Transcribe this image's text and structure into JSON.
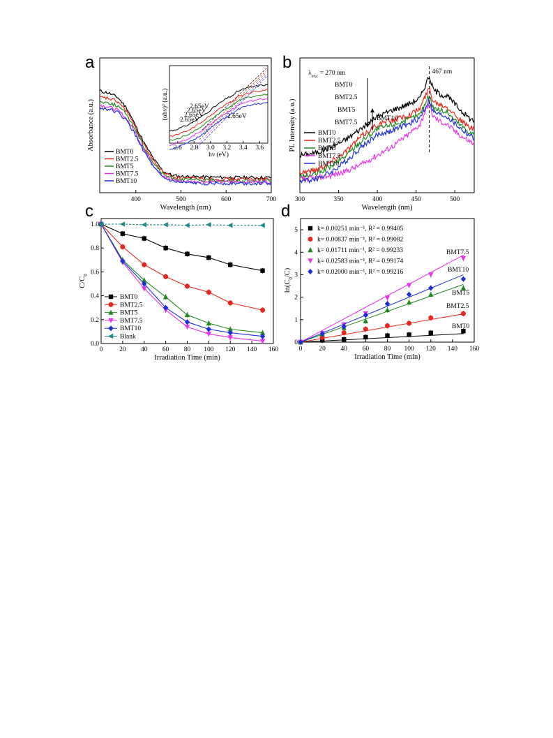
{
  "panel_letters": [
    "a",
    "b",
    "c",
    "d"
  ],
  "colors": {
    "BMT0": "#000000",
    "BMT2.5": "#e8261c",
    "BMT5": "#1e8a1e",
    "BMT7.5": "#e833e8",
    "BMT10": "#1c2ed8",
    "Blank": "#1a8a8a"
  },
  "chart_data": [
    {
      "id": "a",
      "type": "line",
      "xlabel": "Wavelength (nm)",
      "ylabel": "Absorbance (a.u.)",
      "xlim": [
        320,
        700
      ],
      "xticks": [
        400,
        500,
        600,
        700
      ],
      "legend_position": "bottom-left",
      "series": [
        {
          "name": "BMT0",
          "color": "#000000",
          "x": [
            320,
            340,
            360,
            380,
            400,
            420,
            440,
            460,
            480,
            500,
            550,
            600,
            650,
            700
          ],
          "y": [
            0.9,
            0.88,
            0.84,
            0.74,
            0.57,
            0.4,
            0.26,
            0.15,
            0.11,
            0.1,
            0.095,
            0.09,
            0.09,
            0.09
          ]
        },
        {
          "name": "BMT2.5",
          "color": "#e8261c",
          "x": [
            320,
            340,
            360,
            380,
            400,
            420,
            440,
            460,
            480,
            500,
            550,
            600,
            650,
            700
          ],
          "y": [
            0.84,
            0.83,
            0.8,
            0.71,
            0.55,
            0.38,
            0.24,
            0.14,
            0.1,
            0.085,
            0.08,
            0.075,
            0.075,
            0.075
          ]
        },
        {
          "name": "BMT5",
          "color": "#1e8a1e",
          "x": [
            320,
            340,
            360,
            380,
            400,
            420,
            440,
            460,
            480,
            500,
            550,
            600,
            650,
            700
          ],
          "y": [
            0.8,
            0.79,
            0.76,
            0.68,
            0.53,
            0.36,
            0.22,
            0.12,
            0.085,
            0.07,
            0.065,
            0.06,
            0.06,
            0.06
          ]
        },
        {
          "name": "BMT7.5",
          "color": "#e833e8",
          "x": [
            320,
            340,
            360,
            380,
            400,
            420,
            440,
            460,
            480,
            500,
            550,
            600,
            650,
            700
          ],
          "y": [
            0.77,
            0.75,
            0.72,
            0.64,
            0.5,
            0.34,
            0.2,
            0.1,
            0.07,
            0.055,
            0.05,
            0.05,
            0.05,
            0.05
          ]
        },
        {
          "name": "BMT10",
          "color": "#1c2ed8",
          "x": [
            320,
            340,
            360,
            380,
            400,
            420,
            440,
            460,
            480,
            500,
            550,
            600,
            650,
            700
          ],
          "y": [
            0.74,
            0.73,
            0.7,
            0.62,
            0.48,
            0.32,
            0.18,
            0.09,
            0.055,
            0.04,
            0.035,
            0.035,
            0.035,
            0.035
          ]
        }
      ],
      "inset": {
        "xlabel": "hν (eV)",
        "ylabel": "(αhν)² (a.u.)",
        "xlim": [
          2.5,
          3.7
        ],
        "xticks": [
          "2.6",
          "2.8",
          "3.0",
          "3.2",
          "3.4",
          "3.6"
        ],
        "annotations": [
          "2.65eV",
          "2.65eV",
          "2.65eV",
          "2.65eV",
          "2.65eV"
        ]
      }
    },
    {
      "id": "b",
      "type": "line",
      "xlabel": "Wavelength (nm)",
      "ylabel": "PL Intensity (a.u.)",
      "xlim": [
        300,
        525
      ],
      "xticks": [
        300,
        350,
        400,
        450,
        500
      ],
      "annotation_peak": "467 nm",
      "excitation_label": "λ",
      "excitation_sub": "exc",
      "excitation_value": "= 270 nm",
      "order_labels": [
        "BMT0",
        "BMT2.5",
        "BMT5",
        "BMT7.5",
        "BMT10"
      ],
      "legend_position": "bottom-left",
      "series": [
        {
          "name": "BMT0",
          "color": "#000000",
          "x": [
            300,
            320,
            340,
            360,
            380,
            400,
            420,
            440,
            455,
            462,
            467,
            472,
            480,
            490,
            500,
            510,
            520,
            525
          ],
          "y": [
            0.28,
            0.3,
            0.35,
            0.42,
            0.52,
            0.62,
            0.68,
            0.73,
            0.78,
            0.9,
            0.98,
            0.86,
            0.82,
            0.8,
            0.73,
            0.66,
            0.6,
            0.58
          ]
        },
        {
          "name": "BMT2.5",
          "color": "#e8261c",
          "x": [
            300,
            320,
            340,
            360,
            380,
            400,
            420,
            440,
            455,
            462,
            467,
            472,
            480,
            490,
            500,
            510,
            520,
            525
          ],
          "y": [
            0.13,
            0.15,
            0.22,
            0.32,
            0.45,
            0.55,
            0.59,
            0.63,
            0.69,
            0.8,
            0.87,
            0.76,
            0.73,
            0.71,
            0.64,
            0.57,
            0.52,
            0.5
          ]
        },
        {
          "name": "BMT5",
          "color": "#1e8a1e",
          "x": [
            300,
            320,
            340,
            360,
            380,
            400,
            420,
            440,
            455,
            462,
            467,
            472,
            480,
            490,
            500,
            510,
            520,
            525
          ],
          "y": [
            0.09,
            0.11,
            0.18,
            0.28,
            0.41,
            0.51,
            0.55,
            0.59,
            0.64,
            0.74,
            0.81,
            0.7,
            0.68,
            0.66,
            0.59,
            0.53,
            0.48,
            0.46
          ]
        },
        {
          "name": "BMT7.5",
          "color": "#e833e8",
          "x": [
            300,
            320,
            340,
            360,
            380,
            400,
            420,
            440,
            455,
            462,
            467,
            472,
            480,
            490,
            500,
            510,
            520,
            525
          ],
          "y": [
            0.07,
            0.08,
            0.1,
            0.14,
            0.2,
            0.28,
            0.36,
            0.46,
            0.55,
            0.67,
            0.74,
            0.62,
            0.58,
            0.55,
            0.49,
            0.44,
            0.4,
            0.38
          ]
        },
        {
          "name": "BMT10",
          "color": "#1c2ed8",
          "x": [
            300,
            320,
            340,
            360,
            380,
            400,
            420,
            440,
            455,
            462,
            467,
            472,
            480,
            490,
            500,
            510,
            520,
            525
          ],
          "y": [
            0.05,
            0.07,
            0.13,
            0.23,
            0.36,
            0.46,
            0.5,
            0.55,
            0.61,
            0.7,
            0.77,
            0.66,
            0.64,
            0.62,
            0.56,
            0.5,
            0.45,
            0.43
          ]
        }
      ]
    },
    {
      "id": "c",
      "type": "line",
      "xlabel": "Irradiation Time (min)",
      "ylabel": "C/C",
      "ylabel_sub": "0",
      "xlim": [
        0,
        160
      ],
      "ylim": [
        0,
        1.0
      ],
      "xticks": [
        0,
        20,
        40,
        60,
        80,
        100,
        120,
        140,
        160
      ],
      "yticks": [
        "0.0",
        "0.2",
        "0.4",
        "0.6",
        "0.8",
        "1.0"
      ],
      "legend_position": "bottom-left",
      "x": [
        0,
        20,
        40,
        60,
        80,
        100,
        120,
        150
      ],
      "series": [
        {
          "name": "BMT0",
          "color": "#000000",
          "marker": "square",
          "values": [
            1.0,
            0.92,
            0.88,
            0.8,
            0.75,
            0.72,
            0.66,
            0.61
          ]
        },
        {
          "name": "BMT2.5",
          "color": "#e8261c",
          "marker": "circle",
          "values": [
            1.0,
            0.81,
            0.66,
            0.56,
            0.48,
            0.43,
            0.34,
            0.28
          ]
        },
        {
          "name": "BMT5",
          "color": "#1e8a1e",
          "marker": "triangle-up",
          "values": [
            1.0,
            0.7,
            0.53,
            0.39,
            0.24,
            0.17,
            0.12,
            0.09
          ]
        },
        {
          "name": "BMT7.5",
          "color": "#e833e8",
          "marker": "triangle-down",
          "values": [
            1.0,
            0.68,
            0.46,
            0.28,
            0.14,
            0.08,
            0.05,
            0.02
          ]
        },
        {
          "name": "BMT10",
          "color": "#1c2ed8",
          "marker": "diamond",
          "values": [
            1.0,
            0.69,
            0.5,
            0.3,
            0.18,
            0.12,
            0.09,
            0.06
          ]
        },
        {
          "name": "Blank",
          "color": "#1a8a8a",
          "marker": "triangle-left",
          "values": [
            1.0,
            1.0,
            0.995,
            0.995,
            0.99,
            0.995,
            0.99,
            0.99
          ]
        }
      ]
    },
    {
      "id": "d",
      "type": "scatter",
      "xlabel": "Irradiation Time (min)",
      "ylabel": "ln(C",
      "ylabel_sub": "0",
      "ylabel_end": "/C)",
      "xlim": [
        0,
        160
      ],
      "ylim": [
        0,
        5.5
      ],
      "xticks": [
        0,
        20,
        40,
        60,
        80,
        100,
        120,
        140,
        160
      ],
      "yticks": [
        0,
        1,
        2,
        3,
        4,
        5
      ],
      "legend_position": "top-left",
      "x": [
        0,
        20,
        40,
        60,
        80,
        100,
        120,
        150
      ],
      "series": [
        {
          "name": "BMT0",
          "color": "#000000",
          "marker": "square",
          "k": 0.00251,
          "legend": "k= 0.00251 min⁻¹, R² = 0.99405",
          "values": [
            0,
            0.08,
            0.12,
            0.22,
            0.29,
            0.33,
            0.41,
            0.49
          ]
        },
        {
          "name": "BMT2.5",
          "color": "#e8261c",
          "marker": "circle",
          "k": 0.00837,
          "legend": "k= 0.00837 min⁻¹, R² = 0.99082",
          "values": [
            0,
            0.21,
            0.42,
            0.58,
            0.73,
            0.84,
            1.08,
            1.27
          ]
        },
        {
          "name": "BMT5",
          "color": "#1e8a1e",
          "marker": "triangle-up",
          "k": 0.01711,
          "legend": "k= 0.01711 min⁻¹, R² = 0.99233",
          "values": [
            0,
            0.36,
            0.64,
            0.94,
            1.43,
            1.77,
            2.12,
            2.41
          ]
        },
        {
          "name": "BMT7.5",
          "color": "#e833e8",
          "marker": "triangle-down",
          "k": 0.02583,
          "legend": "k= 0.02583 min⁻¹, R² = 0.99174",
          "values": [
            0,
            0.39,
            0.78,
            1.27,
            1.97,
            2.53,
            3.0,
            3.73
          ]
        },
        {
          "name": "BMT10",
          "color": "#1c2ed8",
          "marker": "diamond",
          "k": 0.02,
          "legend": "k= 0.02000 min⁻¹, R² = 0.99216",
          "values": [
            0,
            0.37,
            0.69,
            1.2,
            1.71,
            2.12,
            2.41,
            2.81
          ]
        }
      ]
    }
  ]
}
